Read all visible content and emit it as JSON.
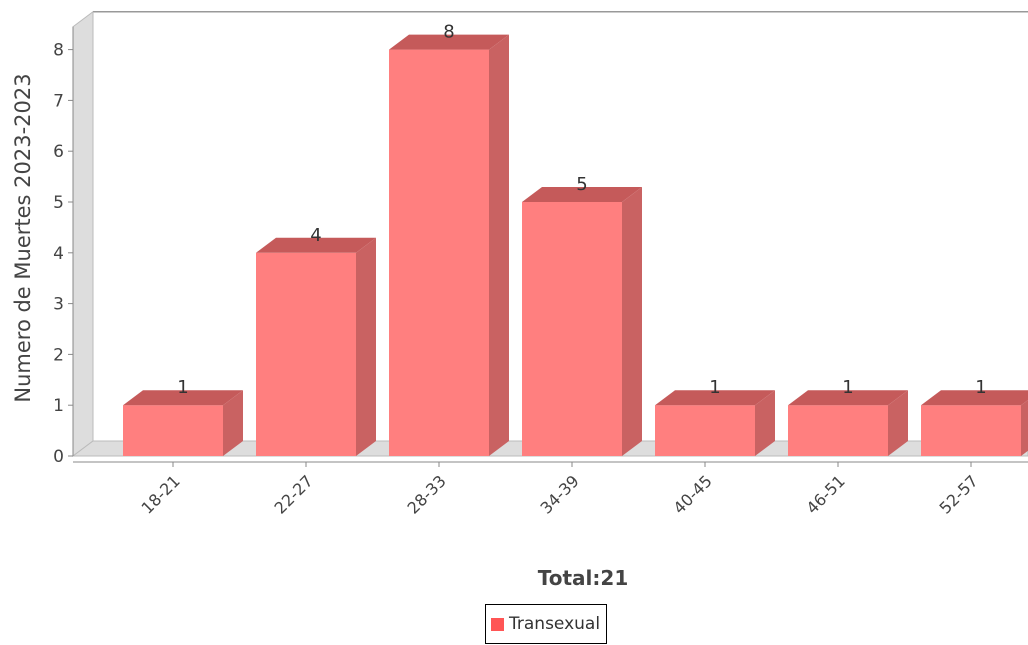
{
  "chart_data": {
    "type": "bar",
    "categories": [
      "18-21",
      "22-27",
      "28-33",
      "34-39",
      "40-45",
      "46-51",
      "52-57"
    ],
    "series": [
      {
        "name": "Transexual",
        "values": [
          1,
          4,
          8,
          5,
          1,
          1,
          1
        ]
      }
    ],
    "data_labels": [
      "1",
      "4",
      "8",
      "5",
      "1",
      "1",
      "1"
    ],
    "ylabel": "Numero de Muertes 2023-2023",
    "xlabel": "Total:21",
    "ylim": [
      0,
      8.5
    ],
    "y_ticks": [
      "0",
      "1",
      "2",
      "3",
      "4",
      "5",
      "6",
      "7",
      "8"
    ],
    "grid": false,
    "legend_position": "bottom",
    "style": "3d",
    "colors": {
      "bar_front": "#ff7f7f",
      "bar_top": "#c55a5a",
      "bar_side": "#c96262",
      "legend_swatch": "#ff5555",
      "wall": "#dddddd"
    }
  }
}
